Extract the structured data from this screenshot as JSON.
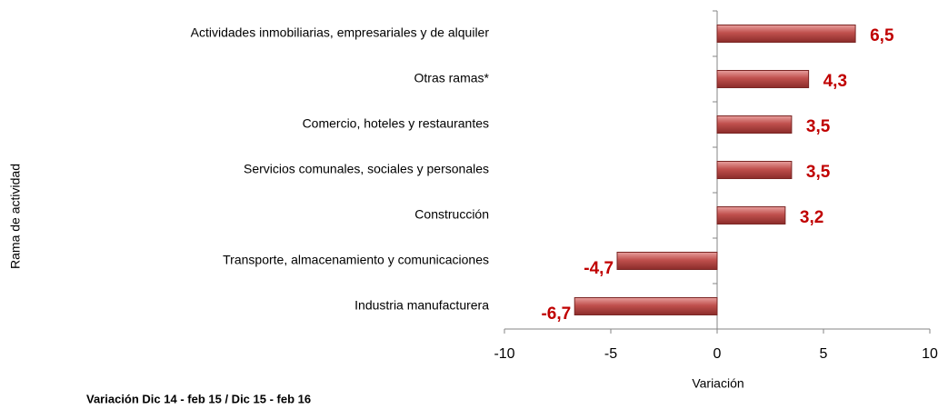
{
  "chart_data": {
    "type": "hbar",
    "categories": [
      "Actividades inmobiliarias, empresariales y de alquiler",
      "Otras ramas*",
      "Comercio, hoteles y restaurantes",
      "Servicios comunales, sociales y personales",
      "Construcción",
      "Transporte, almacenamiento y comunicaciones",
      "Industria manufacturera"
    ],
    "values": [
      6.5,
      4.3,
      3.5,
      3.5,
      3.2,
      -4.7,
      -6.7
    ],
    "value_labels": [
      "6,5",
      "4,3",
      "3,5",
      "3,5",
      "3,2",
      "-4,7",
      "-6,7"
    ],
    "color": "#c0504d",
    "xlim": [
      -10,
      10
    ],
    "xticks": [
      -10,
      -5,
      0,
      5,
      10
    ],
    "x_label": "Variación",
    "y_label": "Rama de actividad",
    "footnote": "Variación  Dic 14 - feb 15 / Dic 15 - feb 16"
  }
}
